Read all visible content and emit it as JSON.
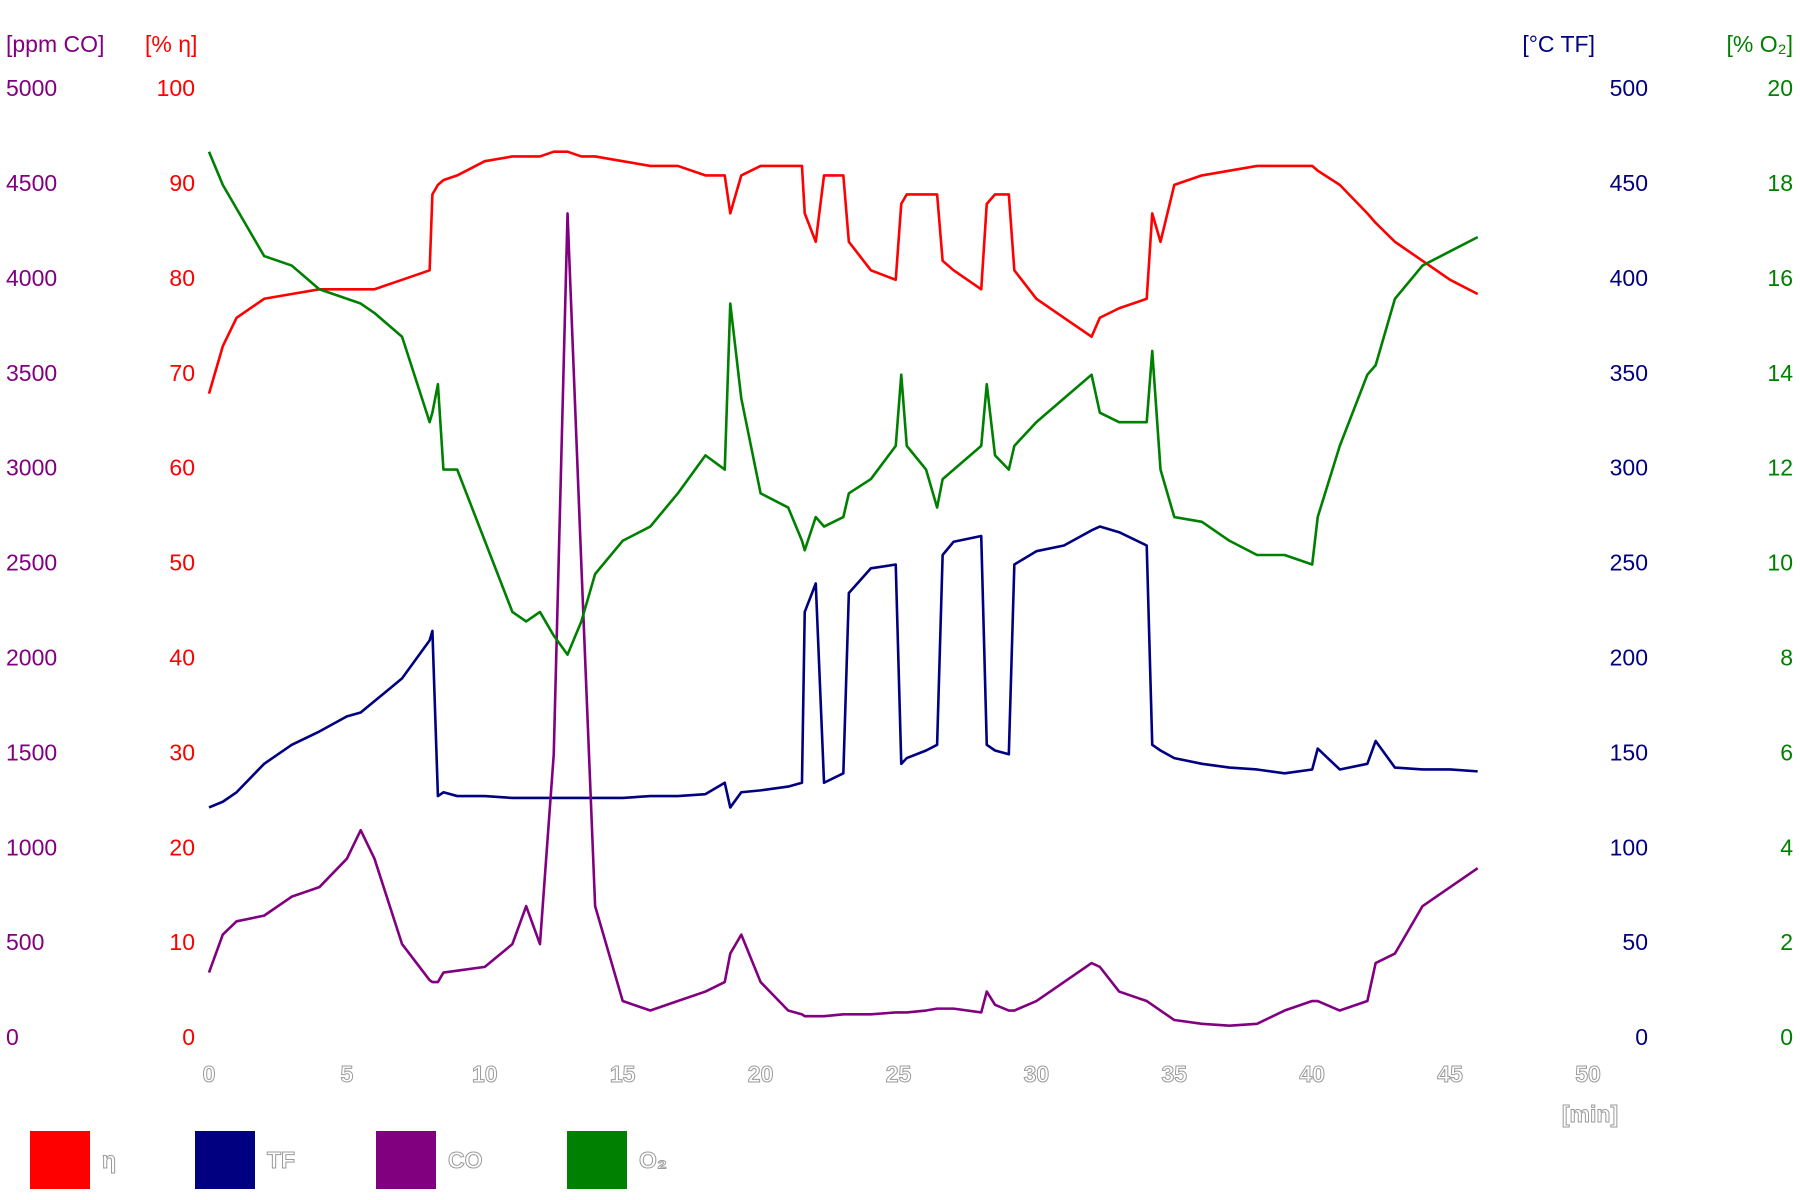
{
  "chart_data": {
    "type": "line",
    "xlabel": "[min]",
    "xlim": [
      0,
      50
    ],
    "xticks": [
      0,
      5,
      10,
      15,
      20,
      25,
      30,
      35,
      40,
      45,
      50
    ],
    "grid": false,
    "axes": [
      {
        "label": "[ppm CO]",
        "color": "#800080",
        "lim": [
          0,
          5000
        ],
        "ticks": [
          0,
          500,
          1000,
          1500,
          2000,
          2500,
          3000,
          3500,
          4000,
          4500,
          5000
        ]
      },
      {
        "label": "[% η]",
        "color": "#ff0000",
        "lim": [
          0,
          100
        ],
        "ticks": [
          0,
          10,
          20,
          30,
          40,
          50,
          60,
          70,
          80,
          90,
          100
        ]
      },
      {
        "label": "[°C TF]",
        "color": "#000080",
        "lim": [
          0,
          500
        ],
        "ticks": [
          0,
          50,
          100,
          150,
          200,
          250,
          300,
          350,
          400,
          450,
          500
        ]
      },
      {
        "label": "[% O₂]",
        "color": "#008000",
        "lim": [
          0,
          20
        ],
        "ticks": [
          0,
          2,
          4,
          6,
          8,
          10,
          12,
          14,
          16,
          18,
          20
        ]
      }
    ],
    "x": [
      0,
      0.5,
      1,
      2,
      3,
      4,
      5,
      5.5,
      6,
      7,
      8,
      8.1,
      8.3,
      8.5,
      9,
      10,
      11,
      11.5,
      12,
      12.5,
      13,
      13.5,
      14,
      15,
      16,
      17,
      18,
      18.7,
      18.9,
      19.3,
      20,
      21,
      21.5,
      21.6,
      22,
      22.3,
      23,
      23.2,
      24,
      24.9,
      25.1,
      25.3,
      26,
      26.4,
      26.6,
      27,
      28,
      28.2,
      28.5,
      29,
      29.2,
      30,
      31,
      32,
      32.3,
      33,
      34,
      34.2,
      34.5,
      35,
      36,
      37,
      38,
      39,
      40,
      40.2,
      41,
      42,
      42.3,
      43,
      44,
      45,
      46
    ],
    "series": [
      {
        "name": "η",
        "color": "#ff0000",
        "axis": 1,
        "values": [
          68,
          73,
          76,
          78,
          78.5,
          79,
          79,
          79,
          79,
          80,
          81,
          89,
          90,
          90.5,
          91,
          92.5,
          93,
          93,
          93,
          93.5,
          93.5,
          93,
          93,
          92.5,
          92,
          92,
          91,
          91,
          87,
          91,
          92,
          92,
          92,
          87,
          84,
          91,
          91,
          84,
          81,
          80,
          88,
          89,
          89,
          89,
          82,
          81,
          79,
          88,
          89,
          89,
          81,
          78,
          76,
          74,
          76,
          77,
          78,
          87,
          84,
          90,
          91,
          91.5,
          92,
          92,
          92,
          91.5,
          90,
          87,
          86,
          84,
          82,
          80,
          78.5
        ]
      },
      {
        "name": "TF",
        "color": "#000080",
        "axis": 2,
        "values": [
          122,
          125,
          130,
          145,
          155,
          162,
          170,
          172,
          178,
          190,
          210,
          215,
          128,
          130,
          128,
          128,
          127,
          127,
          127,
          127,
          127,
          127,
          127,
          127,
          128,
          128,
          129,
          135,
          122,
          130,
          131,
          133,
          135,
          225,
          240,
          135,
          140,
          235,
          248,
          250,
          145,
          148,
          152,
          155,
          255,
          262,
          265,
          155,
          152,
          150,
          250,
          257,
          260,
          268,
          270,
          267,
          260,
          155,
          152,
          148,
          145,
          143,
          142,
          140,
          142,
          153,
          142,
          145,
          157,
          143,
          142,
          142,
          141
        ]
      },
      {
        "name": "CO",
        "color": "#800080",
        "axis": 0,
        "values": [
          350,
          550,
          620,
          650,
          750,
          800,
          950,
          1100,
          950,
          500,
          310,
          300,
          300,
          350,
          360,
          380,
          500,
          700,
          500,
          1500,
          4350,
          2500,
          700,
          200,
          150,
          200,
          250,
          300,
          450,
          550,
          300,
          150,
          130,
          120,
          120,
          120,
          130,
          130,
          130,
          140,
          140,
          140,
          150,
          160,
          160,
          160,
          140,
          250,
          180,
          150,
          150,
          200,
          300,
          400,
          380,
          250,
          200,
          180,
          150,
          100,
          80,
          70,
          80,
          150,
          200,
          200,
          150,
          200,
          400,
          450,
          700,
          800,
          900
        ]
      },
      {
        "name": "O₂",
        "color": "#008000",
        "axis": 3,
        "values": [
          18.7,
          18,
          17.5,
          16.5,
          16.3,
          15.8,
          15.6,
          15.5,
          15.3,
          14.8,
          13,
          13.2,
          13.8,
          12,
          12,
          10.5,
          9,
          8.8,
          9,
          8.5,
          8.1,
          8.8,
          9.8,
          10.5,
          10.8,
          11.5,
          12.3,
          12,
          15.5,
          13.5,
          11.5,
          11.2,
          10.5,
          10.3,
          11,
          10.8,
          11,
          11.5,
          11.8,
          12.5,
          14,
          12.5,
          12,
          11.2,
          11.8,
          12,
          12.5,
          13.8,
          12.3,
          12,
          12.5,
          13,
          13.5,
          14,
          13.2,
          13,
          13,
          14.5,
          12,
          11,
          10.9,
          10.5,
          10.2,
          10.2,
          10,
          11,
          12.5,
          14,
          14.2,
          15.6,
          16.3,
          16.6,
          16.9
        ]
      }
    ]
  }
}
